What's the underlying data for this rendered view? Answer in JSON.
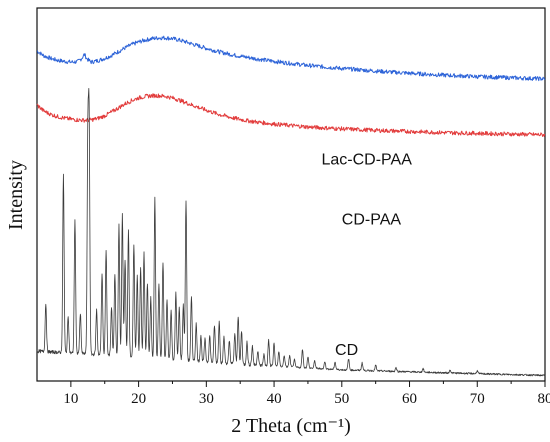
{
  "chart_data": {
    "type": "line",
    "xlabel": "2 Theta (cm⁻¹)",
    "ylabel": "Intensity",
    "xlim": [
      5,
      80
    ],
    "ylim": [
      0,
      100
    ],
    "xticks": [
      10,
      20,
      30,
      40,
      50,
      60,
      70,
      80
    ],
    "y_tick_labels": false,
    "grid": false,
    "colors": {
      "Lac-CD-PAA": "#2e64d8",
      "CD-PAA": "#e23c3c",
      "CD": "#3a3a3a"
    },
    "series": [
      {
        "name": "Lac-CD-PAA",
        "label_at": [
          22,
          58
        ],
        "x": [
          5,
          6,
          7,
          8,
          9,
          10,
          11,
          11.6,
          12,
          12.4,
          13,
          14,
          15,
          16,
          17,
          18,
          19,
          20,
          21,
          22,
          23,
          24,
          25,
          26,
          27,
          28,
          30,
          32,
          34,
          36,
          38,
          40,
          45,
          50,
          55,
          60,
          65,
          70,
          75,
          80
        ],
        "y": [
          88.5,
          87.2,
          86.5,
          86.0,
          85.7,
          85.5,
          85.6,
          86.5,
          87.6,
          86.3,
          85.5,
          85.9,
          86.5,
          87.3,
          88.3,
          89.3,
          90.2,
          90.9,
          91.4,
          91.8,
          92.0,
          92.0,
          91.8,
          91.4,
          90.9,
          90.3,
          89.2,
          88.2,
          87.4,
          86.8,
          86.2,
          85.7,
          84.6,
          83.8,
          83.1,
          82.5,
          82.0,
          81.6,
          81.3,
          81.0
        ]
      },
      {
        "name": "CD-PAA",
        "label_at": [
          21,
          42
        ],
        "x": [
          5,
          6,
          7,
          8,
          9,
          10,
          11,
          12,
          13,
          14,
          15,
          16,
          17,
          18,
          19,
          20,
          21,
          22,
          23,
          24,
          25,
          26,
          27,
          28,
          30,
          32,
          34,
          36,
          38,
          40,
          45,
          50,
          55,
          60,
          65,
          70,
          75,
          80
        ],
        "y": [
          74.0,
          72.4,
          71.5,
          70.9,
          70.5,
          70.2,
          70.0,
          69.9,
          70.0,
          70.4,
          71.1,
          72.1,
          73.2,
          74.3,
          75.2,
          75.9,
          76.3,
          76.5,
          76.5,
          76.3,
          75.9,
          75.3,
          74.6,
          73.9,
          72.6,
          71.4,
          70.5,
          69.8,
          69.3,
          68.9,
          68.1,
          67.6,
          67.2,
          66.9,
          66.6,
          66.4,
          66.2,
          66.0
        ]
      },
      {
        "name": "CD",
        "label_at": [
          51,
          7
        ],
        "baseline": [
          [
            5,
            8
          ],
          [
            20,
            6.5
          ],
          [
            35,
            4.5
          ],
          [
            50,
            3.0
          ],
          [
            65,
            2.2
          ],
          [
            80,
            1.5
          ]
        ],
        "peaks": [
          [
            6.3,
            13
          ],
          [
            8.9,
            48
          ],
          [
            9.6,
            10
          ],
          [
            10.6,
            36
          ],
          [
            11.4,
            11
          ],
          [
            12.5,
            55
          ],
          [
            12.7,
            60
          ],
          [
            13.8,
            12
          ],
          [
            14.6,
            22
          ],
          [
            15.2,
            28
          ],
          [
            16.0,
            13
          ],
          [
            16.5,
            22
          ],
          [
            17.1,
            35
          ],
          [
            17.6,
            38
          ],
          [
            18.0,
            26
          ],
          [
            18.5,
            34
          ],
          [
            19.3,
            30
          ],
          [
            19.8,
            22
          ],
          [
            20.3,
            24
          ],
          [
            20.8,
            28
          ],
          [
            21.3,
            20
          ],
          [
            21.8,
            16
          ],
          [
            22.4,
            43
          ],
          [
            23.0,
            20
          ],
          [
            23.6,
            26
          ],
          [
            24.2,
            16
          ],
          [
            24.8,
            13
          ],
          [
            25.5,
            18
          ],
          [
            26.0,
            14
          ],
          [
            26.6,
            15
          ],
          [
            27.0,
            43
          ],
          [
            27.8,
            17
          ],
          [
            28.5,
            10
          ],
          [
            29.2,
            7
          ],
          [
            29.8,
            6
          ],
          [
            30.5,
            7
          ],
          [
            31.2,
            10
          ],
          [
            31.9,
            11
          ],
          [
            32.6,
            7
          ],
          [
            33.4,
            6
          ],
          [
            34.2,
            8
          ],
          [
            34.7,
            13
          ],
          [
            35.2,
            9
          ],
          [
            36.0,
            6
          ],
          [
            36.8,
            5
          ],
          [
            37.6,
            4
          ],
          [
            38.5,
            3
          ],
          [
            39.2,
            7
          ],
          [
            40.0,
            6
          ],
          [
            40.7,
            4
          ],
          [
            41.5,
            3
          ],
          [
            42.3,
            3
          ],
          [
            43.0,
            2
          ],
          [
            44.2,
            5
          ],
          [
            45.0,
            3
          ],
          [
            46.0,
            2
          ],
          [
            47.5,
            2
          ],
          [
            49.0,
            2
          ],
          [
            51.0,
            3
          ],
          [
            53.0,
            2
          ],
          [
            55.0,
            1.5
          ],
          [
            58.0,
            1
          ],
          [
            62.0,
            1
          ],
          [
            66.0,
            0.8
          ],
          [
            70.0,
            0.8
          ]
        ]
      }
    ]
  }
}
